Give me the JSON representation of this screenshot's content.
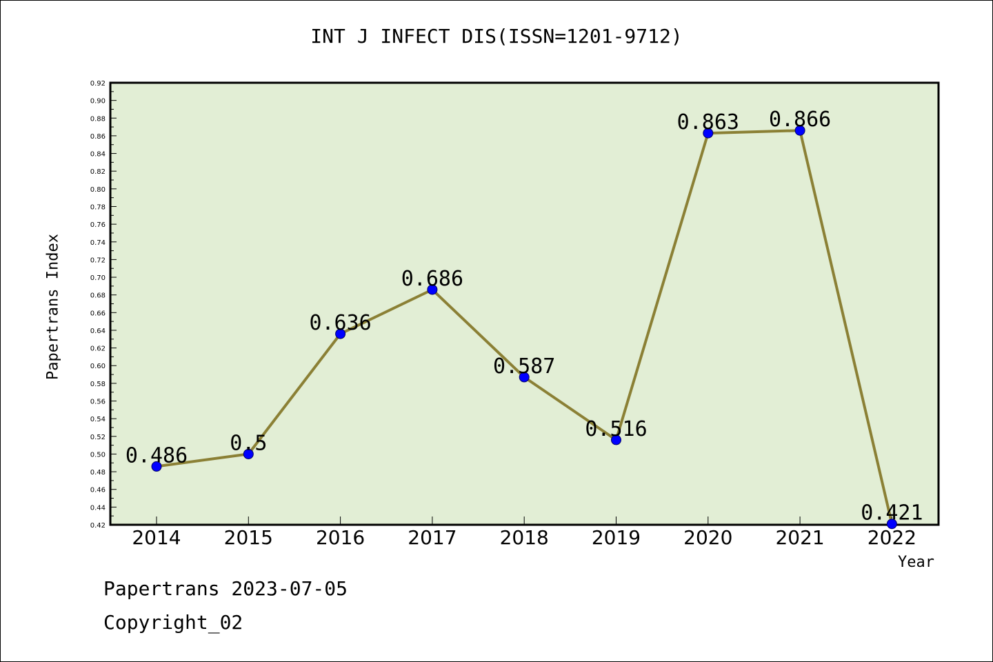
{
  "title": "INT J INFECT DIS(ISSN=1201-9712)",
  "footer": {
    "line1": "Papertrans 2023-07-05",
    "line2": "Copyright_02"
  },
  "colors": {
    "plot_background": "#e2eed5",
    "line": "#8b8035",
    "marker": "#0000ff",
    "axis": "#000000"
  },
  "chart_data": {
    "type": "line",
    "title": "INT J INFECT DIS(ISSN=1201-9712)",
    "xlabel": "Year",
    "ylabel": "Papertrans Index",
    "categories": [
      "2014",
      "2015",
      "2016",
      "2017",
      "2018",
      "2019",
      "2020",
      "2021",
      "2022"
    ],
    "series": [
      {
        "values": [
          0.486,
          0.5,
          0.636,
          0.686,
          0.587,
          0.516,
          0.863,
          0.866,
          0.421
        ],
        "labels": [
          "0.486",
          "0.5",
          "0.636",
          "0.686",
          "0.587",
          "0.516",
          "0.863",
          "0.866",
          "0.421"
        ]
      }
    ],
    "ylim": [
      0.42,
      0.92
    ],
    "ytick_step": 0.02,
    "grid": false,
    "legend": "none"
  }
}
